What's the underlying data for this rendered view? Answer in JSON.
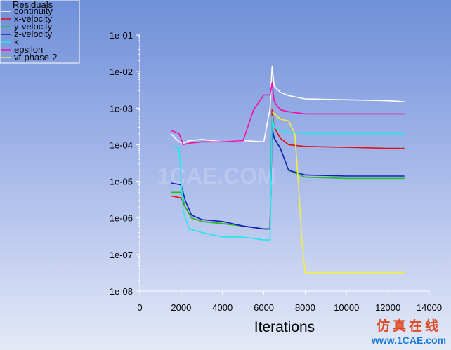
{
  "chart_data": {
    "type": "line",
    "title": "",
    "xlabel": "Iterations",
    "ylabel": "",
    "x_scale": "linear",
    "y_scale": "log",
    "xlim": [
      0,
      14000
    ],
    "ylim": [
      1e-08,
      0.1
    ],
    "x_ticks": [
      0,
      2000,
      4000,
      6000,
      8000,
      10000,
      12000,
      14000
    ],
    "x_tick_labels": [
      "0",
      "2000",
      "4000",
      "6000",
      "8000",
      "10000",
      "12000",
      "14000"
    ],
    "y_ticks": [
      1e-08,
      1e-07,
      1e-06,
      1e-05,
      0.0001,
      0.001,
      0.01,
      0.1
    ],
    "y_tick_labels": [
      "1e-08",
      "1e-07",
      "1e-06",
      "1e-05",
      "1e-04",
      "1e-03",
      "1e-02",
      "1e-01"
    ],
    "grid": false,
    "legend_title": "Residuals",
    "legend_position": "top-left",
    "series": [
      {
        "name": "continuity",
        "color": "#ffffff",
        "x": [
          1500,
          1900,
          2100,
          2400,
          3000,
          4000,
          5000,
          6000,
          6300,
          6400,
          6500,
          6800,
          7200,
          8000,
          10000,
          12000,
          12800
        ],
        "y": [
          0.0002,
          0.00012,
          0.00011,
          0.00013,
          0.00014,
          0.00012,
          0.00013,
          0.00012,
          0.001,
          0.014,
          0.004,
          0.0027,
          0.0022,
          0.0018,
          0.0017,
          0.0016,
          0.0015
        ]
      },
      {
        "name": "x-velocity",
        "color": "#e01010",
        "x": [
          1500,
          2000,
          2200,
          2500,
          3000,
          4000,
          5000,
          6000,
          6300,
          6400,
          6500,
          6800,
          7200,
          8000,
          10000,
          12000,
          12800
        ],
        "y": [
          4e-06,
          3.5e-06,
          2e-06,
          1e-06,
          8e-07,
          7e-07,
          6e-07,
          5e-07,
          5e-07,
          0.0009,
          0.0003,
          0.00015,
          0.0001,
          9e-05,
          8.5e-05,
          8e-05,
          8e-05
        ]
      },
      {
        "name": "y-velocity",
        "color": "#20c020",
        "x": [
          1500,
          2000,
          2200,
          2500,
          3000,
          4000,
          5000,
          6000,
          6300,
          6400,
          6500,
          6800,
          7200,
          8000,
          10000,
          12000,
          12800
        ],
        "y": [
          5e-06,
          5e-06,
          2e-06,
          1e-06,
          8e-07,
          7e-07,
          6e-07,
          5e-07,
          5e-07,
          0.0003,
          0.00015,
          8e-05,
          2e-05,
          1.3e-05,
          1.2e-05,
          1.2e-05,
          1.2e-05
        ]
      },
      {
        "name": "z-velocity",
        "color": "#1020c0",
        "x": [
          1500,
          2000,
          2200,
          2500,
          3000,
          4000,
          5000,
          6000,
          6300,
          6400,
          6500,
          6800,
          7200,
          8000,
          10000,
          12000,
          12800
        ],
        "y": [
          9e-06,
          8e-06,
          3e-06,
          1.2e-06,
          9e-07,
          8e-07,
          6e-07,
          5e-07,
          5e-07,
          0.0003,
          0.00015,
          8e-05,
          2e-05,
          1.5e-05,
          1.4e-05,
          1.4e-05,
          1.4e-05
        ]
      },
      {
        "name": "k",
        "color": "#20e8e8",
        "x": [
          1500,
          1900,
          2100,
          2400,
          3000,
          4000,
          5000,
          6000,
          6300,
          6400,
          6500,
          6800,
          7200,
          8000,
          10000,
          12000,
          12800
        ],
        "y": [
          9e-05,
          8e-05,
          1.5e-06,
          5e-07,
          4e-07,
          3e-07,
          3e-07,
          2.5e-07,
          2.5e-07,
          0.0006,
          0.0003,
          0.00025,
          0.00022,
          0.0002,
          0.0002,
          0.0002,
          0.0002
        ]
      },
      {
        "name": "epsilon",
        "color": "#f010a8",
        "x": [
          1500,
          1900,
          2100,
          2400,
          3000,
          4000,
          5000,
          5500,
          6000,
          6300,
          6400,
          6500,
          6800,
          7200,
          8000,
          10000,
          12000,
          12800
        ],
        "y": [
          0.00025,
          0.0002,
          0.0001,
          0.00011,
          0.00012,
          0.00012,
          0.00013,
          0.0009,
          0.0023,
          0.0023,
          0.005,
          0.0015,
          0.0009,
          0.0008,
          0.0007,
          0.0007,
          0.0007,
          0.0007
        ]
      },
      {
        "name": "vf-phase-2",
        "color": "#f0f040",
        "x": [
          6400,
          6800,
          7200,
          7500,
          7700,
          7850,
          8000,
          9000,
          10000,
          12000,
          12800
        ],
        "y": [
          0.0008,
          0.0005,
          0.00045,
          0.0002,
          5e-06,
          2e-07,
          3.2e-08,
          3.2e-08,
          3.2e-08,
          3.2e-08,
          3.2e-08
        ]
      }
    ]
  },
  "watermark": {
    "text": "1CAE.COM"
  },
  "badge": {
    "line1": "仿真在线",
    "line2": "www.1CAE.com"
  }
}
